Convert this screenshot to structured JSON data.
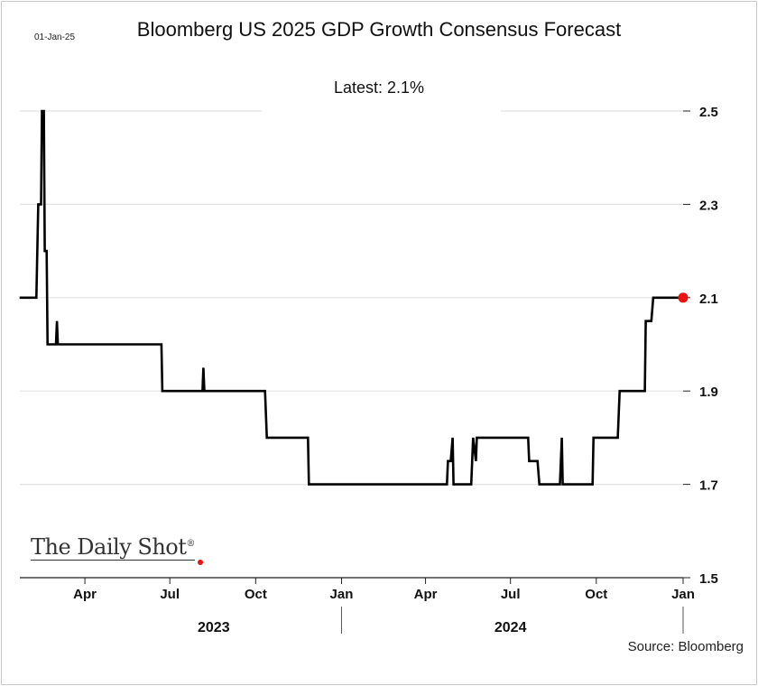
{
  "date_stamp": "01-Jan-25",
  "logo_text": "The Daily Shot",
  "source": "Source: Bloomberg",
  "chart_data": {
    "type": "line",
    "title": "Bloomberg US 2025 GDP Growth Consensus Forecast",
    "subtitle": "Latest:  2.1%",
    "xlabel": "",
    "ylabel": "",
    "x_units": "days since 2023-01-01",
    "xlim": [
      0,
      731
    ],
    "ylim": [
      1.5,
      2.5
    ],
    "y_ticks": [
      1.5,
      1.7,
      1.9,
      2.1,
      2.3,
      2.5
    ],
    "y_tick_labels": [
      "1.5",
      "1.7",
      "1.9",
      "2.1",
      "2.3",
      "2.5"
    ],
    "y_axis_side": "right",
    "x_ticks": [
      90,
      181,
      273,
      365,
      455,
      546,
      638,
      731
    ],
    "x_tick_labels": [
      "Apr",
      "Jul",
      "Oct",
      "Jan",
      "Apr",
      "Jul",
      "Oct",
      "Jan"
    ],
    "year_labels": [
      {
        "label": "2023",
        "x": 228
      },
      {
        "label": "2024",
        "x": 546
      }
    ],
    "year_separators": [
      365,
      731
    ],
    "grid": true,
    "line_color": "#000000",
    "marker_color": "#ee1111",
    "series": [
      {
        "name": "2025 GDP growth consensus",
        "x": [
          20,
          38,
          40,
          43,
          44,
          46,
          47,
          49,
          50,
          59,
          60,
          61,
          172,
          173,
          216,
          217,
          218,
          283,
          285,
          329,
          330,
          478,
          479,
          482,
          484,
          485,
          504,
          506,
          509,
          510,
          565,
          566,
          575,
          577,
          599,
          601,
          602,
          634,
          635,
          661,
          663,
          690,
          691,
          697,
          699,
          731
        ],
        "y": [
          2.1,
          2.1,
          2.3,
          2.3,
          2.5,
          2.5,
          2.2,
          2.2,
          2.0,
          2.0,
          2.05,
          2.0,
          2.0,
          1.9,
          1.9,
          1.95,
          1.9,
          1.9,
          1.8,
          1.8,
          1.7,
          1.7,
          1.75,
          1.75,
          1.8,
          1.7,
          1.7,
          1.8,
          1.75,
          1.8,
          1.8,
          1.75,
          1.75,
          1.7,
          1.7,
          1.8,
          1.7,
          1.7,
          1.8,
          1.8,
          1.9,
          1.9,
          2.05,
          2.05,
          2.1,
          2.1
        ]
      }
    ]
  }
}
